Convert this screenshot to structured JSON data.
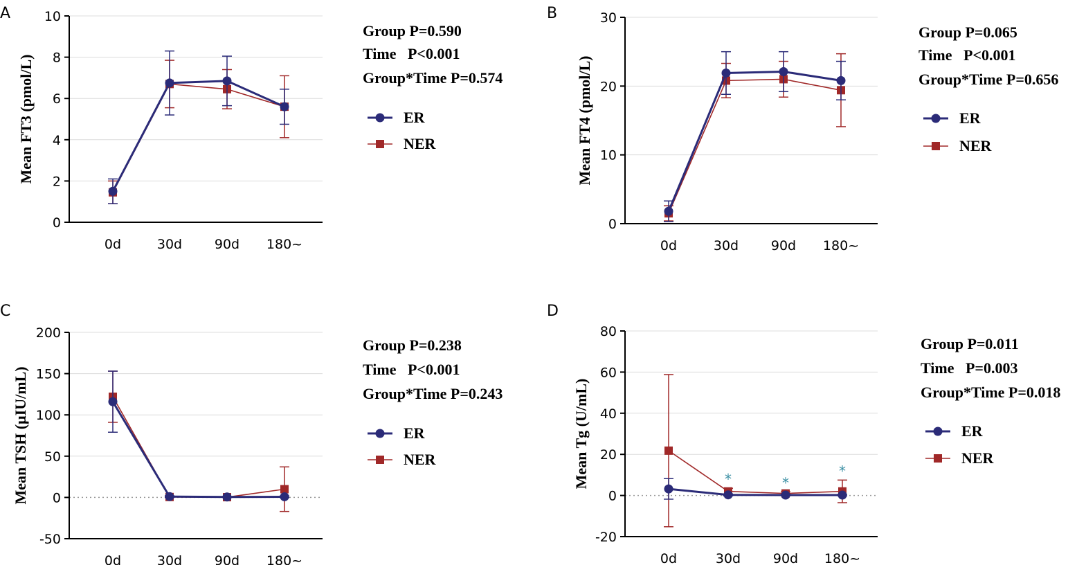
{
  "colors": {
    "ER": "#2b2b78",
    "NER": "#a02828",
    "grid": "#dcdcdc",
    "sig": "#3a8fa3"
  },
  "chart_data": [
    {
      "panel": "A",
      "type": "line",
      "title": "",
      "ylabel": "Mean FT3 (pmol/L)",
      "categories": [
        "0d",
        "30d",
        "90d",
        "180~"
      ],
      "ylim": [
        0,
        10
      ],
      "yticks": [
        0,
        2,
        4,
        6,
        8,
        10
      ],
      "zero_line": false,
      "series": [
        {
          "name": "ER",
          "marker": "circle",
          "values": [
            1.5,
            6.75,
            6.85,
            5.6
          ],
          "err": [
            0.6,
            1.55,
            1.2,
            0.85
          ]
        },
        {
          "name": "NER",
          "marker": "square",
          "values": [
            1.45,
            6.7,
            6.45,
            5.6
          ],
          "err": [
            0.55,
            1.15,
            0.95,
            1.5
          ]
        }
      ],
      "stats": [
        "Group P=0.590",
        "Time   P<0.001",
        "Group*Time P=0.574"
      ],
      "significance": []
    },
    {
      "panel": "B",
      "type": "line",
      "title": "",
      "ylabel": "Mean FT4 (pmol/L)",
      "categories": [
        "0d",
        "30d",
        "90d",
        "180~"
      ],
      "ylim": [
        0,
        30
      ],
      "yticks": [
        0,
        10,
        20,
        30
      ],
      "zero_line": false,
      "series": [
        {
          "name": "ER",
          "marker": "circle",
          "values": [
            1.8,
            21.9,
            22.1,
            20.8
          ],
          "err": [
            1.5,
            3.1,
            2.9,
            2.8
          ]
        },
        {
          "name": "NER",
          "marker": "square",
          "values": [
            1.5,
            20.8,
            21.0,
            19.4
          ],
          "err": [
            1.1,
            2.5,
            2.6,
            5.3
          ]
        }
      ],
      "stats": [
        "Group P=0.065",
        "Time   P<0.001",
        "Group*Time P=0.656"
      ],
      "significance": []
    },
    {
      "panel": "C",
      "type": "line",
      "title": "",
      "ylabel": "Mean TSH (μIU/mL)",
      "categories": [
        "0d",
        "30d",
        "90d",
        "180~"
      ],
      "ylim": [
        -50,
        200
      ],
      "yticks": [
        -50,
        0,
        50,
        100,
        150,
        200
      ],
      "zero_line": true,
      "series": [
        {
          "name": "ER",
          "marker": "circle",
          "values": [
            116,
            1,
            0.5,
            0.8
          ],
          "err": [
            37,
            1,
            0.5,
            1
          ]
        },
        {
          "name": "NER",
          "marker": "square",
          "values": [
            122,
            0.5,
            0.3,
            10
          ],
          "err": [
            31,
            0.5,
            0.3,
            27
          ]
        }
      ],
      "stats": [
        "Group P=0.238",
        "Time   P<0.001",
        "Group*Time P=0.243"
      ],
      "significance": []
    },
    {
      "panel": "D",
      "type": "line",
      "title": "",
      "ylabel": "Mean Tg (U/mL)",
      "categories": [
        "0d",
        "30d",
        "90d",
        "180~"
      ],
      "ylim": [
        -20,
        80
      ],
      "yticks": [
        -20,
        0,
        20,
        40,
        60,
        80
      ],
      "zero_line": true,
      "series": [
        {
          "name": "ER",
          "marker": "circle",
          "values": [
            3.2,
            0.3,
            0.2,
            0.2
          ],
          "err": [
            5.0,
            0.5,
            0.4,
            0.4
          ]
        },
        {
          "name": "NER",
          "marker": "square",
          "values": [
            21.8,
            2.0,
            1.0,
            2.0
          ],
          "err": [
            37.0,
            1.5,
            0.8,
            5.5
          ]
        }
      ],
      "stats": [
        "Group P=0.011",
        "Time   P=0.003",
        "Group*Time P=0.018"
      ],
      "significance": [
        "",
        "*",
        "*",
        "*"
      ]
    }
  ]
}
